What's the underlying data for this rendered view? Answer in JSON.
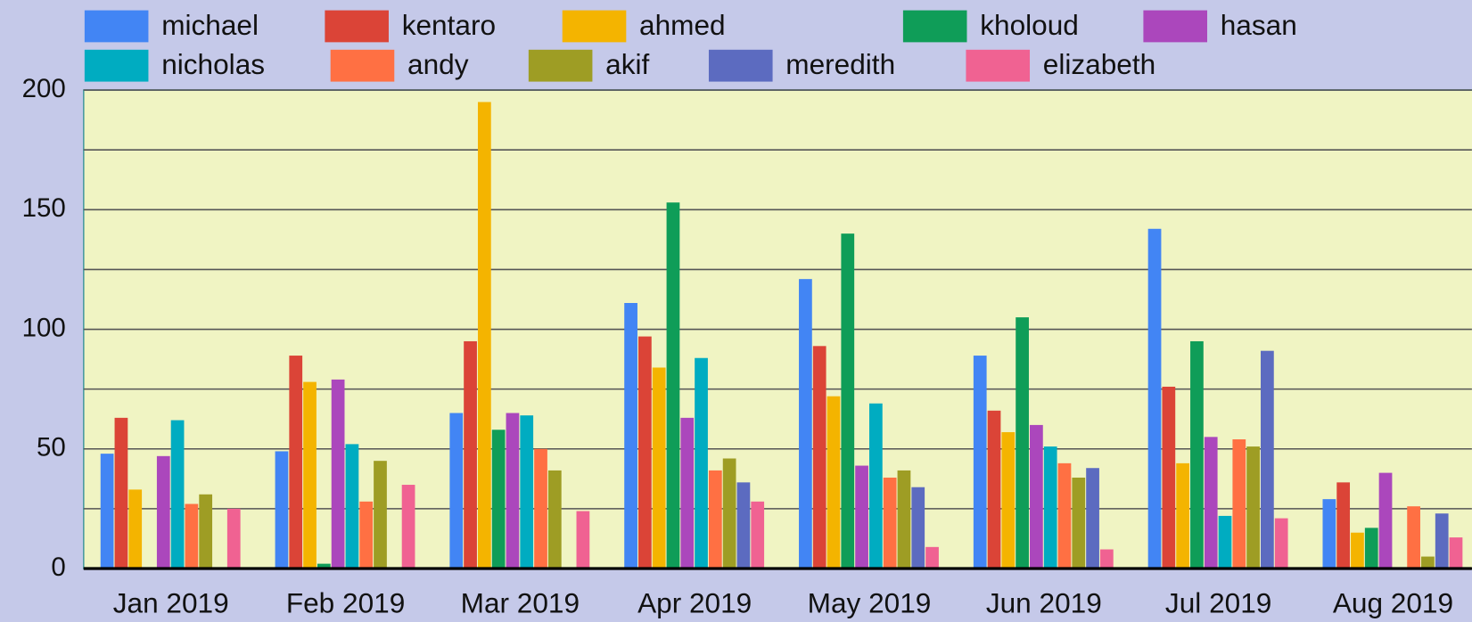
{
  "chart_data": {
    "type": "bar",
    "categories": [
      "Jan 2019",
      "Feb 2019",
      "Mar 2019",
      "Apr 2019",
      "May 2019",
      "Jun 2019",
      "Jul 2019",
      "Aug 2019"
    ],
    "series": [
      {
        "name": "michael",
        "color": "#4285f4",
        "values": [
          48,
          49,
          65,
          111,
          121,
          89,
          142,
          29
        ]
      },
      {
        "name": "kentaro",
        "color": "#db4437",
        "values": [
          63,
          89,
          95,
          97,
          93,
          66,
          76,
          36
        ]
      },
      {
        "name": "ahmed",
        "color": "#f4b400",
        "values": [
          33,
          78,
          195,
          84,
          72,
          57,
          44,
          15
        ]
      },
      {
        "name": "kholoud",
        "color": "#0f9d58",
        "values": [
          null,
          2,
          58,
          153,
          140,
          105,
          95,
          17
        ]
      },
      {
        "name": "hasan",
        "color": "#ab47bc",
        "values": [
          47,
          79,
          65,
          63,
          43,
          60,
          55,
          40
        ]
      },
      {
        "name": "nicholas",
        "color": "#00acc1",
        "values": [
          62,
          52,
          64,
          88,
          69,
          51,
          22,
          null
        ]
      },
      {
        "name": "andy",
        "color": "#ff7043",
        "values": [
          27,
          28,
          50,
          41,
          38,
          44,
          54,
          26
        ]
      },
      {
        "name": "akif",
        "color": "#9e9d24",
        "values": [
          31,
          45,
          41,
          46,
          41,
          38,
          51,
          5
        ]
      },
      {
        "name": "meredith",
        "color": "#5c6bc0",
        "values": [
          null,
          null,
          null,
          36,
          34,
          42,
          91,
          23
        ]
      },
      {
        "name": "elizabeth",
        "color": "#f06292",
        "values": [
          25,
          35,
          24,
          28,
          9,
          8,
          21,
          13
        ]
      }
    ],
    "ylim": [
      0,
      200
    ],
    "yticks": [
      0,
      50,
      100,
      150,
      200
    ],
    "minor_yticks": [
      25,
      75,
      125,
      175
    ],
    "grid": true
  }
}
